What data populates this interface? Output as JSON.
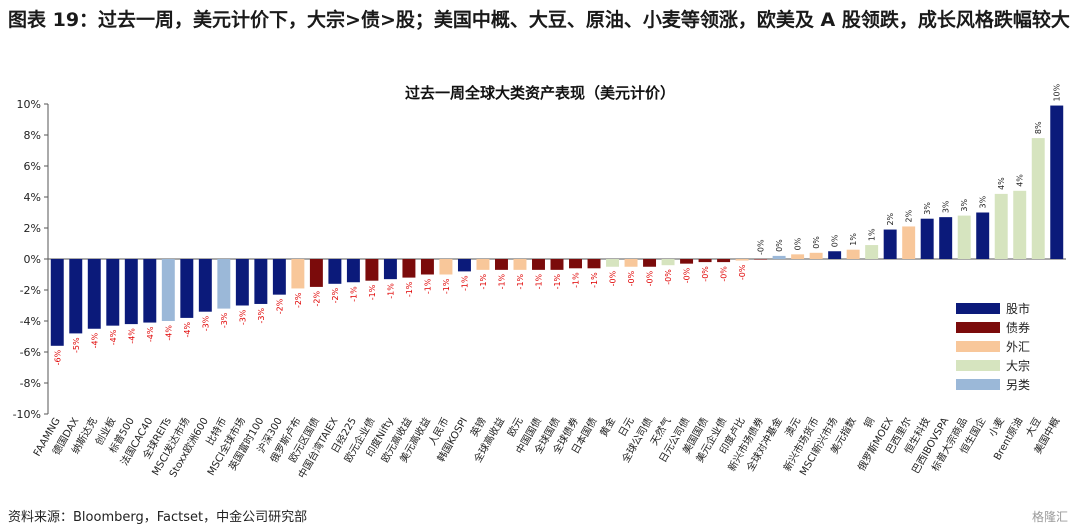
{
  "figure": {
    "title": "图表 19：过去一周，美元计价下，大宗>债>股；美国中概、大豆、原油、小麦等领涨，欧美及 A 股领跌，成长风格跌幅较大",
    "source": "资料来源：Bloomberg，Factset，中金公司研究部",
    "watermark": "格隆汇"
  },
  "colors": {
    "股市": "#0b1a7a",
    "债券": "#7b0b0b",
    "外汇": "#f8c79a",
    "大宗": "#d6e4bf",
    "另类": "#9bb8d8",
    "positive_label": "#222222",
    "negative_label": "#e00000"
  },
  "chart_data": {
    "type": "bar",
    "title": "过去一周全球大类资产表现（美元计价）",
    "xlabel": "",
    "ylabel": "",
    "ylim": [
      -10,
      10
    ],
    "yticks": [
      -10,
      -8,
      -6,
      -4,
      -2,
      0,
      2,
      4,
      6,
      8,
      10
    ],
    "ytick_format": "percent",
    "grid": false,
    "legend_position": "right",
    "legend": [
      "股市",
      "债券",
      "外汇",
      "大宗",
      "另类"
    ],
    "categories": [
      "FAAMNG",
      "德国DAX",
      "纳斯达克",
      "创业板",
      "标普500",
      "法国CAC40",
      "全球REITs",
      "MSCI发达市场",
      "Stoxx欧洲600",
      "比特币",
      "MSCI全球市场",
      "英国富时100",
      "沪深300",
      "俄罗斯卢布",
      "欧元区国债",
      "中国台湾TAIEX",
      "日经225",
      "欧元企业债",
      "印度Nifty",
      "欧元高收益",
      "美元高收益",
      "人民币",
      "韩国KOSPI",
      "英镑",
      "全球高收益",
      "欧元",
      "中国国债",
      "全球国债",
      "全球债券",
      "日本国债",
      "黄金",
      "日元",
      "全球公司债",
      "天然气",
      "日元公司债",
      "美国国债",
      "美元企业债",
      "印度卢比",
      "新兴市场债券",
      "全球对冲基金",
      "澳元",
      "新兴市场货币",
      "MSCI新兴市场",
      "美元指数",
      "铜",
      "俄罗斯MOEX",
      "巴西里尔",
      "恒生科技",
      "巴西IBOVSPA",
      "标普大宗商品",
      "恒生国企",
      "小麦",
      "Brent原油",
      "大豆",
      "美国中概"
    ],
    "values": [
      -5.6,
      -4.8,
      -4.5,
      -4.3,
      -4.2,
      -4.1,
      -4.0,
      -3.8,
      -3.4,
      -3.2,
      -3.0,
      -2.9,
      -2.3,
      -1.9,
      -1.8,
      -1.6,
      -1.5,
      -1.4,
      -1.3,
      -1.2,
      -1.0,
      -1.0,
      -0.8,
      -0.7,
      -0.7,
      -0.7,
      -0.7,
      -0.7,
      -0.6,
      -0.6,
      -0.5,
      -0.5,
      -0.5,
      -0.4,
      -0.3,
      -0.2,
      -0.2,
      -0.1,
      0.0,
      0.2,
      0.3,
      0.4,
      0.5,
      0.6,
      0.9,
      1.9,
      2.1,
      2.6,
      2.7,
      2.8,
      3.0,
      4.2,
      4.4,
      7.8,
      9.9
    ],
    "data_labels": [
      "-6%",
      "-5%",
      "-4%",
      "-4%",
      "-4%",
      "-4%",
      "-4%",
      "-4%",
      "-3%",
      "-3%",
      "-3%",
      "-3%",
      "-2%",
      "-2%",
      "-2%",
      "-2%",
      "-1%",
      "-1%",
      "-1%",
      "-1%",
      "-1%",
      "-1%",
      "-1%",
      "-1%",
      "-1%",
      "-1%",
      "-1%",
      "-1%",
      "-1%",
      "-1%",
      "-0%",
      "-0%",
      "-0%",
      "-0%",
      "-0%",
      "-0%",
      "-0%",
      "-0%",
      "-0%",
      "0%",
      "0%",
      "0%",
      "0%",
      "1%",
      "1%",
      "2%",
      "2%",
      "3%",
      "3%",
      "3%",
      "3%",
      "4%",
      "4%",
      "8%",
      "10%"
    ],
    "asset_class": [
      "股市",
      "股市",
      "股市",
      "股市",
      "股市",
      "股市",
      "另类",
      "股市",
      "股市",
      "另类",
      "股市",
      "股市",
      "股市",
      "外汇",
      "债券",
      "股市",
      "股市",
      "债券",
      "股市",
      "债券",
      "债券",
      "外汇",
      "股市",
      "外汇",
      "债券",
      "外汇",
      "债券",
      "债券",
      "债券",
      "债券",
      "大宗",
      "外汇",
      "债券",
      "大宗",
      "债券",
      "债券",
      "债券",
      "外汇",
      "债券",
      "另类",
      "外汇",
      "外汇",
      "股市",
      "外汇",
      "大宗",
      "股市",
      "外汇",
      "股市",
      "股市",
      "大宗",
      "股市",
      "大宗",
      "大宗",
      "大宗",
      "股市"
    ]
  }
}
